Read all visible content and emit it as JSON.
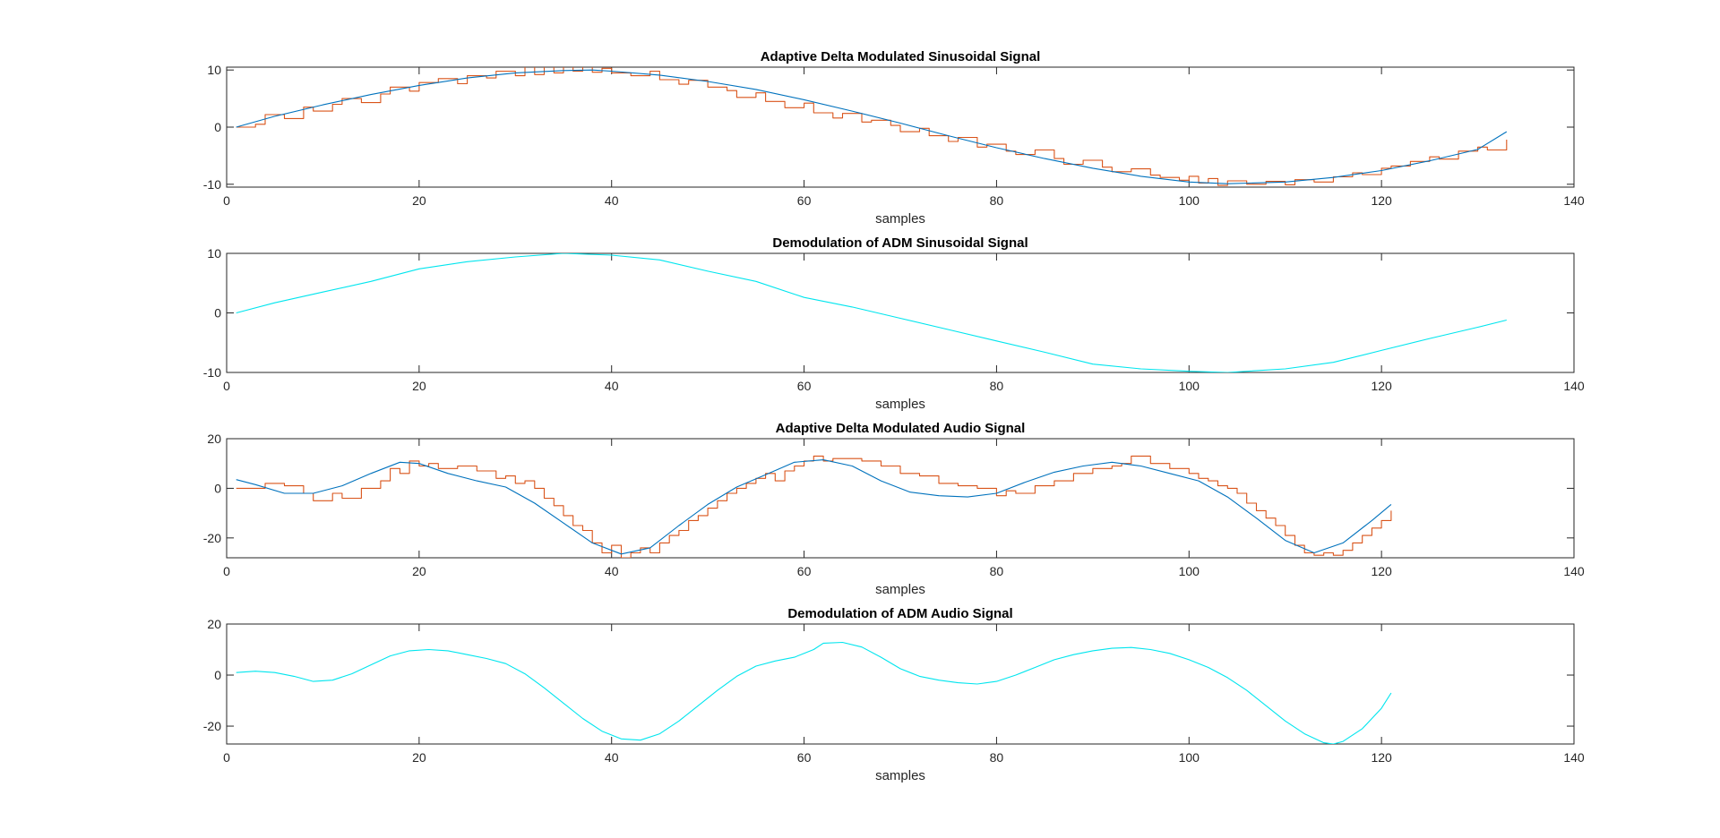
{
  "figure": {
    "background": "#ffffff",
    "axes_color": "#262626",
    "colors": {
      "original": "#0072BD",
      "staircase": "#D95319",
      "demodulated": "#00E5EE"
    }
  },
  "chart_data": [
    {
      "type": "line",
      "title": "Adaptive Delta Modulated Sinusoidal Signal",
      "xlabel": "samples",
      "ylabel": "",
      "xlim": [
        0,
        140
      ],
      "ylim": [
        -10.5,
        10.5
      ],
      "xticks": [
        0,
        20,
        40,
        60,
        80,
        100,
        120,
        140
      ],
      "yticks": [
        -10,
        0,
        10
      ],
      "grid": false,
      "series": [
        {
          "role": "original",
          "style": "line",
          "x": [
            1,
            5,
            10,
            15,
            20,
            25,
            30,
            35,
            38,
            40,
            45,
            50,
            55,
            60,
            65,
            70,
            75,
            80,
            85,
            90,
            95,
            100,
            104,
            110,
            115,
            120,
            125,
            130,
            133
          ],
          "y": [
            0,
            1.9,
            3.9,
            5.7,
            7.3,
            8.6,
            9.5,
            9.9,
            10.0,
            9.8,
            9.1,
            8.0,
            6.6,
            4.8,
            2.8,
            0.7,
            -1.5,
            -3.6,
            -5.5,
            -7.2,
            -8.6,
            -9.6,
            -9.9,
            -9.6,
            -8.8,
            -7.6,
            -5.9,
            -3.9,
            -0.8
          ]
        },
        {
          "role": "staircase",
          "style": "step",
          "x": [
            1,
            3,
            4,
            6,
            8,
            9,
            11,
            12,
            14,
            16,
            17,
            19,
            20,
            22,
            24,
            25,
            27,
            28,
            30,
            31,
            32,
            33,
            34,
            35,
            36,
            37,
            38,
            39,
            40,
            42,
            44,
            45,
            47,
            48,
            50,
            52,
            53,
            55,
            56,
            58,
            60,
            61,
            63,
            64,
            66,
            67,
            69,
            70,
            72,
            73,
            75,
            76,
            78,
            79,
            81,
            82,
            84,
            86,
            87,
            89,
            91,
            92,
            94,
            96,
            97,
            99,
            100,
            101,
            102,
            103,
            104,
            106,
            108,
            110,
            111,
            113,
            115,
            117,
            118,
            120,
            121,
            123,
            125,
            126,
            128,
            130,
            131,
            133
          ],
          "y": [
            0,
            0.5,
            2.2,
            1.5,
            3.5,
            2.8,
            4.0,
            5.0,
            4.3,
            5.8,
            7.0,
            6.3,
            7.8,
            8.5,
            7.6,
            9.0,
            8.6,
            9.8,
            9.0,
            10.6,
            9.2,
            10.8,
            9.5,
            10.9,
            9.8,
            10.7,
            9.6,
            10.3,
            9.5,
            9.0,
            9.8,
            8.3,
            7.5,
            8.2,
            7.0,
            6.4,
            5.2,
            6.0,
            4.5,
            3.4,
            4.2,
            2.5,
            1.6,
            2.4,
            0.9,
            1.2,
            0.3,
            -0.8,
            -0.2,
            -1.5,
            -2.5,
            -1.8,
            -3.5,
            -3.0,
            -4.2,
            -4.8,
            -4.0,
            -5.5,
            -6.5,
            -5.8,
            -7.0,
            -7.8,
            -7.3,
            -8.4,
            -8.8,
            -9.3,
            -8.6,
            -9.8,
            -9.0,
            -10.2,
            -9.4,
            -10.0,
            -9.5,
            -10.1,
            -9.2,
            -9.6,
            -8.7,
            -8.0,
            -8.3,
            -7.2,
            -6.8,
            -6.0,
            -5.2,
            -5.6,
            -4.2,
            -3.5,
            -4.0,
            -2.2
          ]
        }
      ]
    },
    {
      "type": "line",
      "title": "Demodulation of ADM Sinusoidal Signal",
      "xlabel": "samples",
      "ylabel": "",
      "xlim": [
        0,
        140
      ],
      "ylim": [
        -10,
        10
      ],
      "xticks": [
        0,
        20,
        40,
        60,
        80,
        100,
        120,
        140
      ],
      "yticks": [
        -10,
        0,
        10
      ],
      "grid": false,
      "series": [
        {
          "role": "demodulated",
          "style": "line",
          "x": [
            1,
            5,
            10,
            15,
            20,
            25,
            30,
            35,
            40,
            45,
            50,
            55,
            60,
            65,
            70,
            75,
            80,
            85,
            90,
            95,
            100,
            104,
            110,
            115,
            120,
            125,
            130,
            133
          ],
          "y": [
            0,
            1.7,
            3.5,
            5.3,
            7.4,
            8.6,
            9.4,
            10.0,
            9.7,
            8.9,
            7.0,
            5.3,
            2.6,
            1.0,
            -0.9,
            -2.8,
            -4.7,
            -6.6,
            -8.6,
            -9.4,
            -9.8,
            -10.0,
            -9.4,
            -8.3,
            -6.3,
            -4.3,
            -2.4,
            -1.2
          ]
        }
      ]
    },
    {
      "type": "line",
      "title": "Adaptive Delta Modulated Audio Signal",
      "xlabel": "samples",
      "ylabel": "",
      "xlim": [
        0,
        140
      ],
      "ylim": [
        -28,
        20
      ],
      "xticks": [
        0,
        20,
        40,
        60,
        80,
        100,
        120,
        140
      ],
      "yticks": [
        -20,
        0,
        20
      ],
      "grid": false,
      "series": [
        {
          "role": "original",
          "style": "line",
          "x": [
            1,
            3,
            6,
            9,
            12,
            15,
            18,
            20,
            23,
            26,
            29,
            32,
            35,
            38,
            41,
            44,
            47,
            50,
            53,
            56,
            59,
            62,
            65,
            68,
            71,
            74,
            77,
            80,
            83,
            86,
            89,
            92,
            95,
            98,
            101,
            104,
            107,
            110,
            113,
            116,
            119,
            121
          ],
          "y": [
            3.5,
            1.5,
            -2.0,
            -2.0,
            1.0,
            6.0,
            10.5,
            10.0,
            6.0,
            3.0,
            0.5,
            -6.0,
            -14.0,
            -22.0,
            -26.5,
            -24.0,
            -15.0,
            -6.5,
            0.5,
            5.5,
            10.5,
            11.5,
            9.0,
            3.0,
            -1.5,
            -3.0,
            -3.5,
            -2.0,
            2.5,
            6.5,
            9.0,
            10.5,
            9.0,
            6.0,
            3.0,
            -3.5,
            -12.0,
            -21.0,
            -26.0,
            -22.0,
            -13.0,
            -6.5
          ]
        },
        {
          "role": "staircase",
          "style": "step",
          "x": [
            1,
            4,
            6,
            8,
            9,
            11,
            12,
            14,
            16,
            17,
            18,
            19,
            20,
            21,
            22,
            24,
            26,
            28,
            29,
            30,
            31,
            32,
            33,
            34,
            35,
            36,
            37,
            38,
            39,
            40,
            41,
            42,
            43,
            44,
            45,
            46,
            47,
            48,
            49,
            50,
            51,
            52,
            53,
            54,
            55,
            56,
            57,
            58,
            59,
            60,
            61,
            62,
            63,
            64,
            66,
            68,
            70,
            72,
            74,
            76,
            78,
            80,
            81,
            82,
            84,
            86,
            88,
            90,
            92,
            93,
            94,
            96,
            98,
            100,
            101,
            102,
            103,
            104,
            105,
            106,
            107,
            108,
            109,
            110,
            111,
            112,
            113,
            114,
            115,
            116,
            117,
            118,
            119,
            120,
            121
          ],
          "y": [
            0,
            2,
            1,
            -2,
            -5,
            -2,
            -4,
            0,
            3,
            8,
            6,
            11,
            9,
            10,
            8,
            9,
            7,
            4,
            5,
            2,
            3,
            0,
            -4,
            -7,
            -11,
            -15,
            -17,
            -22,
            -26,
            -23,
            -28,
            -26,
            -24,
            -26,
            -22,
            -19,
            -17,
            -13,
            -11,
            -8,
            -5,
            -2,
            0,
            2,
            4,
            6,
            3,
            7,
            9,
            11,
            13,
            11,
            12,
            12,
            11,
            9,
            6,
            5,
            2,
            1,
            0,
            -3,
            -1,
            -2,
            1,
            3,
            6,
            8,
            9,
            10,
            13,
            10,
            8,
            6,
            4,
            3,
            1,
            0,
            -2,
            -6,
            -9,
            -12,
            -15,
            -19,
            -23,
            -26,
            -27,
            -26,
            -27,
            -25,
            -22,
            -19,
            -16,
            -13,
            -9
          ]
        }
      ]
    },
    {
      "type": "line",
      "title": "Demodulation of ADM Audio Signal",
      "xlabel": "samples",
      "ylabel": "",
      "xlim": [
        0,
        140
      ],
      "ylim": [
        -27,
        20
      ],
      "xticks": [
        0,
        20,
        40,
        60,
        80,
        100,
        120,
        140
      ],
      "yticks": [
        -20,
        0,
        20
      ],
      "grid": false,
      "series": [
        {
          "role": "demodulated",
          "style": "line",
          "x": [
            1,
            3,
            5,
            7,
            9,
            11,
            13,
            15,
            17,
            19,
            21,
            23,
            25,
            27,
            29,
            31,
            33,
            35,
            37,
            39,
            41,
            43,
            45,
            47,
            49,
            51,
            53,
            55,
            57,
            59,
            61,
            62,
            64,
            66,
            68,
            70,
            72,
            74,
            76,
            78,
            80,
            82,
            84,
            86,
            88,
            90,
            92,
            94,
            96,
            98,
            100,
            102,
            104,
            106,
            108,
            110,
            112,
            114,
            115,
            116,
            118,
            120,
            121
          ],
          "y": [
            1.0,
            1.5,
            1.0,
            -0.5,
            -2.5,
            -2.0,
            0.5,
            4.0,
            7.5,
            9.5,
            10.0,
            9.5,
            8.0,
            6.5,
            4.5,
            0.5,
            -5.0,
            -11.0,
            -17.0,
            -22.0,
            -25.0,
            -25.5,
            -23.0,
            -18.0,
            -12.0,
            -6.0,
            -0.5,
            3.5,
            5.5,
            7.0,
            10.0,
            12.5,
            12.8,
            11.0,
            7.0,
            2.5,
            -0.5,
            -2.0,
            -3.0,
            -3.5,
            -2.5,
            0.0,
            3.0,
            6.0,
            8.0,
            9.5,
            10.5,
            10.8,
            10.0,
            8.5,
            6.0,
            3.0,
            -1.0,
            -6.0,
            -12.0,
            -18.0,
            -23.0,
            -26.5,
            -27.0,
            -26.0,
            -21.0,
            -13.0,
            -7.0
          ]
        }
      ]
    }
  ]
}
